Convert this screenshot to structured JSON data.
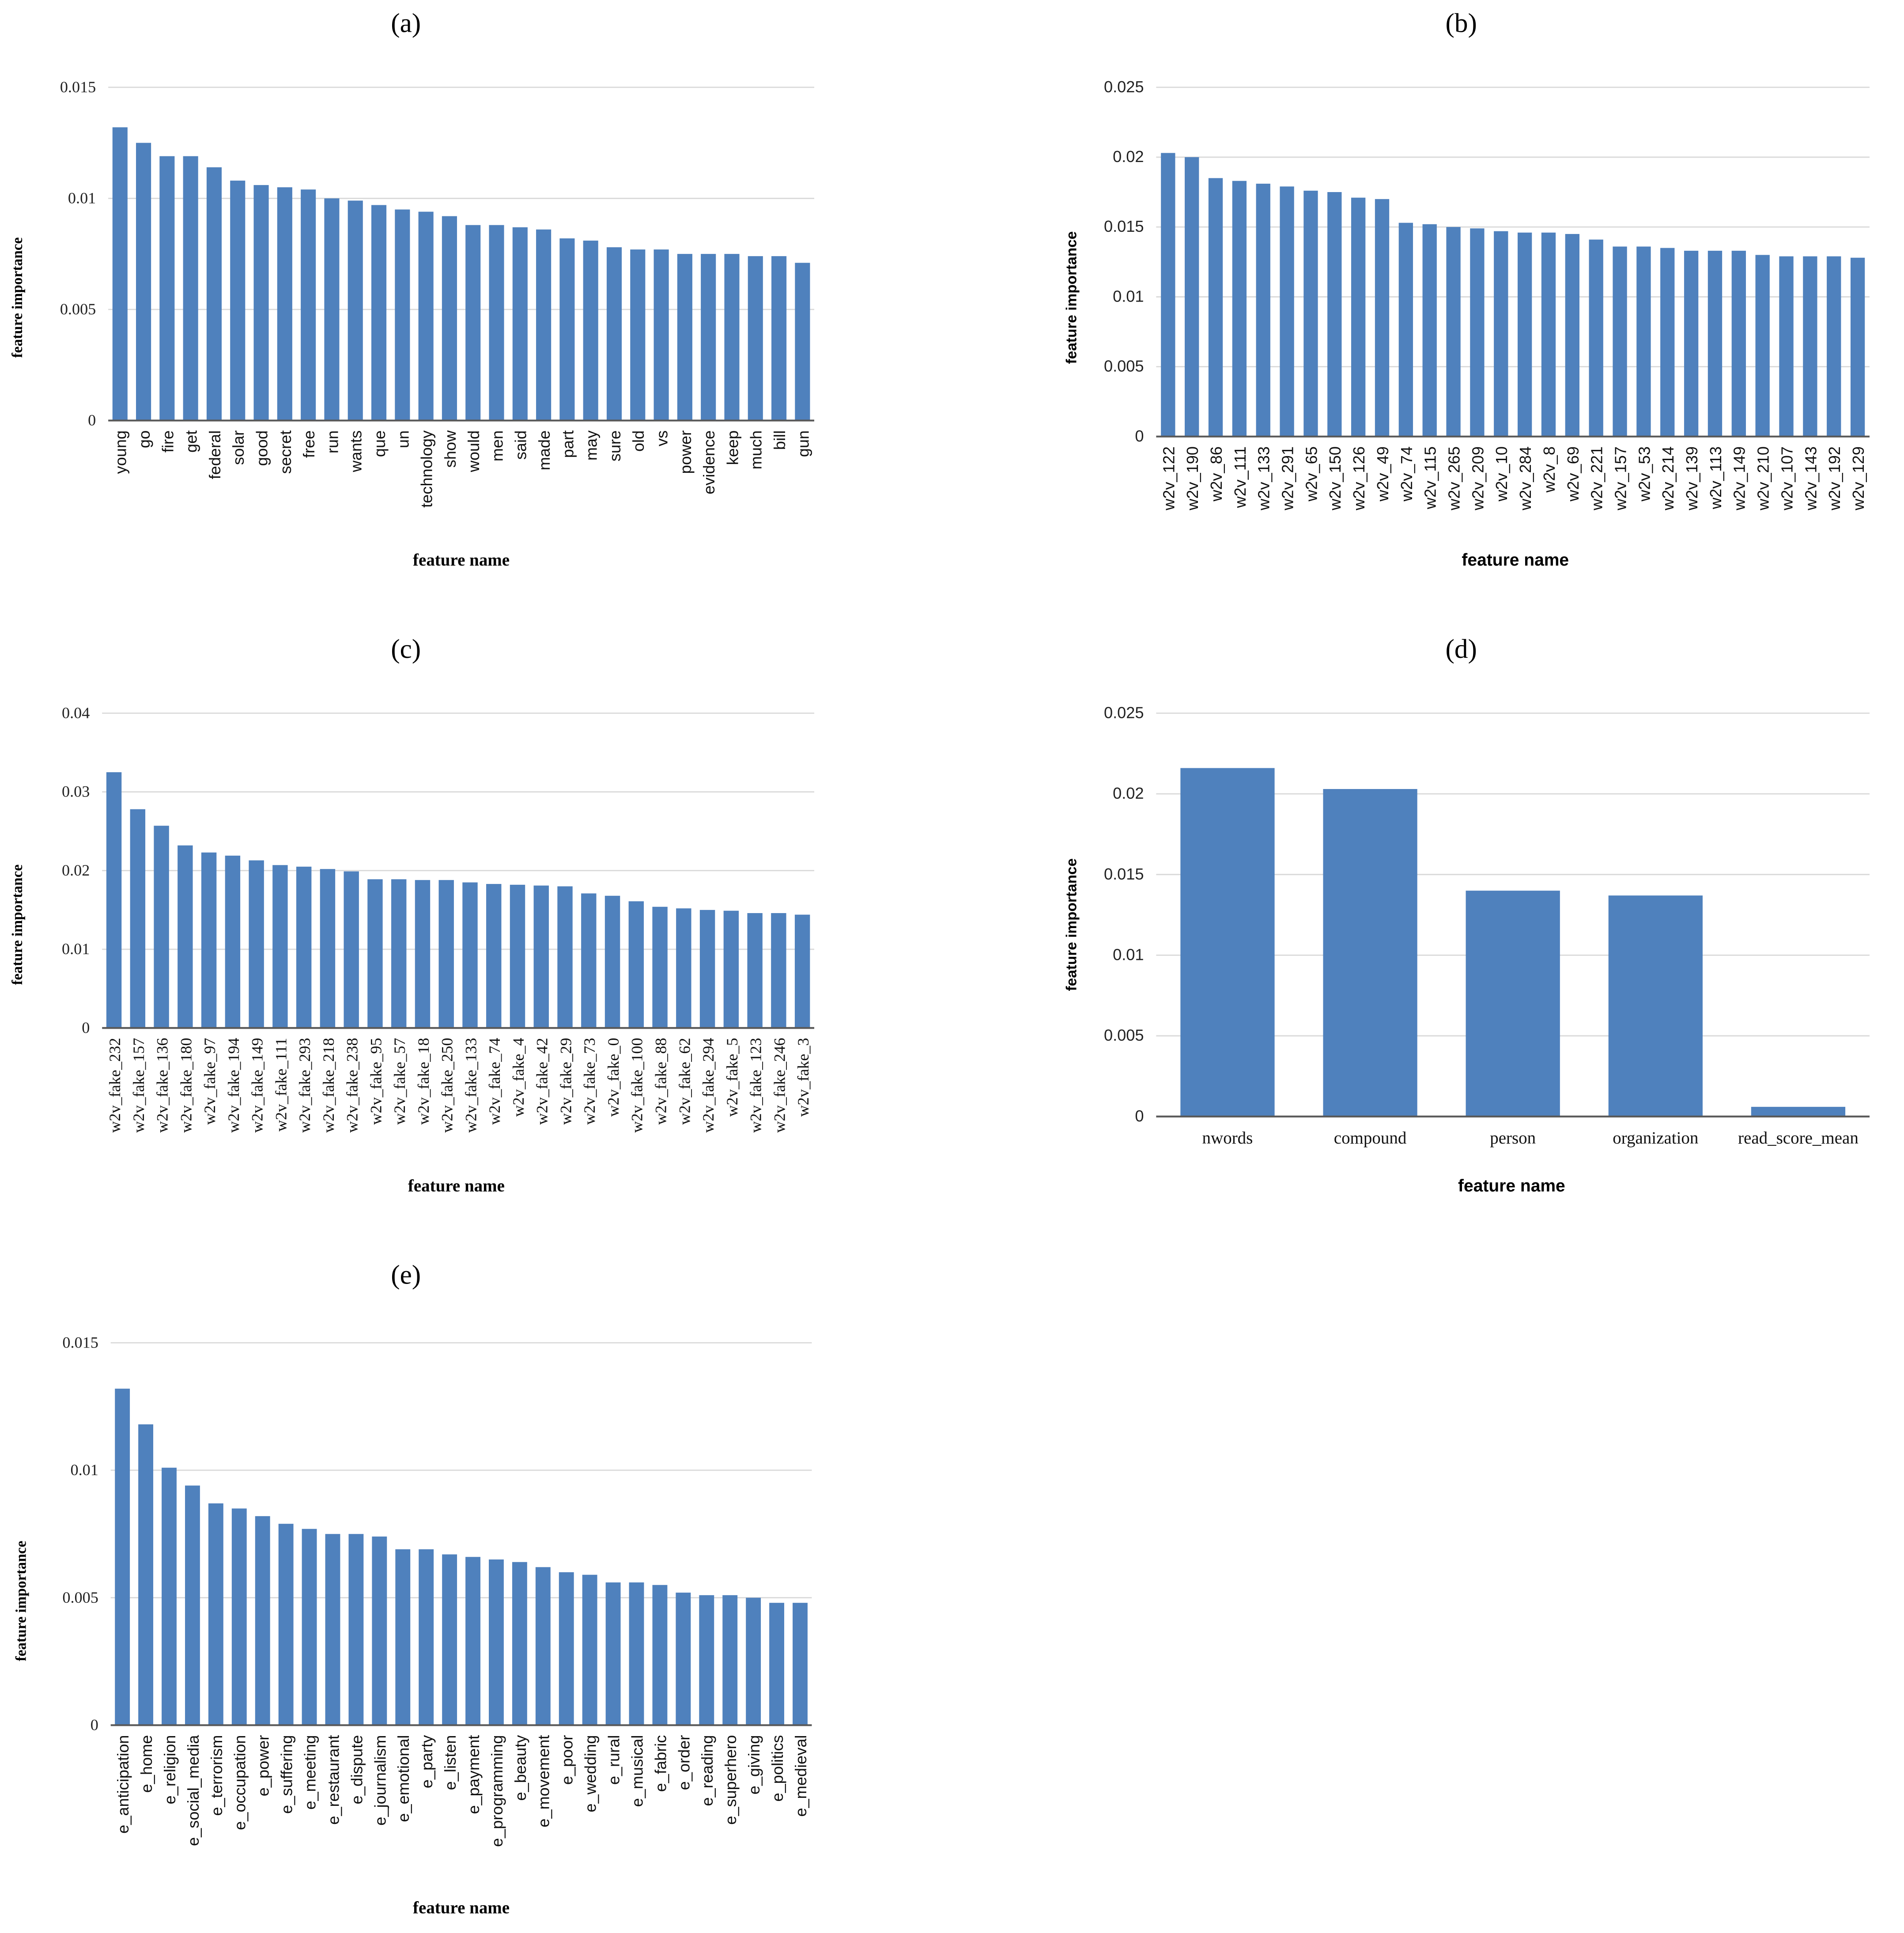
{
  "chart_data": [
    {
      "panel": "(a)",
      "type": "bar",
      "xlabel": "feature name",
      "ylabel": "feature importance",
      "ylim": [
        0,
        0.015
      ],
      "yticks": [
        "0",
        "0.005",
        "0.01",
        "0.015"
      ],
      "grid": true,
      "categories": [
        "young",
        "go",
        "fire",
        "get",
        "federal",
        "solar",
        "good",
        "secret",
        "free",
        "run",
        "wants",
        "que",
        "un",
        "technology",
        "show",
        "would",
        "men",
        "said",
        "made",
        "part",
        "may",
        "sure",
        "old",
        "vs",
        "power",
        "evidence",
        "keep",
        "much",
        "bill",
        "gun"
      ],
      "values": [
        0.0132,
        0.0125,
        0.0119,
        0.0119,
        0.0114,
        0.0108,
        0.0106,
        0.0105,
        0.0104,
        0.01,
        0.0099,
        0.0097,
        0.0095,
        0.0094,
        0.0092,
        0.0088,
        0.0088,
        0.0087,
        0.0086,
        0.0082,
        0.0081,
        0.0078,
        0.0077,
        0.0077,
        0.0075,
        0.0075,
        0.0075,
        0.0074,
        0.0074,
        0.0071
      ]
    },
    {
      "panel": "(b)",
      "type": "bar",
      "xlabel": "feature name",
      "ylabel": "feature importance",
      "ylim": [
        0,
        0.025
      ],
      "yticks": [
        "0",
        "0.005",
        "0.01",
        "0.015",
        "0.02",
        "0.025"
      ],
      "grid": true,
      "categories": [
        "w2v_122",
        "w2v_190",
        "w2v_86",
        "w2v_111",
        "w2v_133",
        "w2v_291",
        "w2v_65",
        "w2v_150",
        "w2v_126",
        "w2v_49",
        "w2v_74",
        "w2v_115",
        "w2v_265",
        "w2v_209",
        "w2v_10",
        "w2v_284",
        "w2v_8",
        "w2v_69",
        "w2v_221",
        "w2v_157",
        "w2v_53",
        "w2v_214",
        "w2v_139",
        "w2v_113",
        "w2v_149",
        "w2v_210",
        "w2v_107",
        "w2v_143",
        "w2v_192",
        "w2v_129"
      ],
      "values": [
        0.0203,
        0.02,
        0.0185,
        0.0183,
        0.0181,
        0.0179,
        0.0176,
        0.0175,
        0.0171,
        0.017,
        0.0153,
        0.0152,
        0.015,
        0.0149,
        0.0147,
        0.0146,
        0.0146,
        0.0145,
        0.0141,
        0.0136,
        0.0136,
        0.0135,
        0.0133,
        0.0133,
        0.0133,
        0.013,
        0.0129,
        0.0129,
        0.0129,
        0.0128
      ]
    },
    {
      "panel": "(c)",
      "type": "bar",
      "xlabel": "feature name",
      "ylabel": "feature importance",
      "ylim": [
        0,
        0.04
      ],
      "yticks": [
        "0",
        "0.01",
        "0.02",
        "0.03",
        "0.04"
      ],
      "grid": true,
      "categories": [
        "w2v_fake_232",
        "w2v_fake_157",
        "w2v_fake_136",
        "w2v_fake_180",
        "w2v_fake_97",
        "w2v_fake_194",
        "w2v_fake_149",
        "w2v_fake_111",
        "w2v_fake_293",
        "w2v_fake_218",
        "w2v_fake_238",
        "w2v_fake_95",
        "w2v_fake_57",
        "w2v_fake_18",
        "w2v_fake_250",
        "w2v_fake_133",
        "w2v_fake_74",
        "w2v_fake_4",
        "w2v_fake_42",
        "w2v_fake_29",
        "w2v_fake_73",
        "w2v_fake_0",
        "w2v_fake_100",
        "w2v_fake_88",
        "w2v_fake_62",
        "w2v_fake_294",
        "w2v_fake_5",
        "w2v_fake_123",
        "w2v_fake_246",
        "w2v_fake_3"
      ],
      "values": [
        0.0325,
        0.0278,
        0.0257,
        0.0232,
        0.0223,
        0.0219,
        0.0213,
        0.0207,
        0.0205,
        0.0202,
        0.0199,
        0.0189,
        0.0189,
        0.0188,
        0.0188,
        0.0185,
        0.0183,
        0.0182,
        0.0181,
        0.018,
        0.0171,
        0.0168,
        0.0161,
        0.0154,
        0.0152,
        0.015,
        0.0149,
        0.0146,
        0.0146,
        0.0144
      ]
    },
    {
      "panel": "(d)",
      "type": "bar",
      "xlabel": "feature name",
      "ylabel": "feature importance",
      "ylim": [
        0,
        0.025
      ],
      "yticks": [
        "0",
        "0.005",
        "0.01",
        "0.015",
        "0.02",
        "0.025"
      ],
      "grid": true,
      "categories": [
        "nwords",
        "compound",
        "person",
        "organization",
        "read_score_mean"
      ],
      "values": [
        0.0216,
        0.0203,
        0.014,
        0.0137,
        0.0006
      ]
    },
    {
      "panel": "(e)",
      "type": "bar",
      "xlabel": "feature name",
      "ylabel": "feature importance",
      "ylim": [
        0,
        0.015
      ],
      "yticks": [
        "0",
        "0.005",
        "0.01",
        "0.015"
      ],
      "grid": true,
      "categories": [
        "e_anticipation",
        "e_home",
        "e_religion",
        "e_social_media",
        "e_terrorism",
        "e_occupation",
        "e_power",
        "e_suffering",
        "e_meeting",
        "e_restaurant",
        "e_dispute",
        "e_journalism",
        "e_emotional",
        "e_party",
        "e_listen",
        "e_payment",
        "e_programming",
        "e_beauty",
        "e_movement",
        "e_poor",
        "e_wedding",
        "e_rural",
        "e_musical",
        "e_fabric",
        "e_order",
        "e_reading",
        "e_superhero",
        "e_giving",
        "e_politics",
        "e_medieval"
      ],
      "values": [
        0.0132,
        0.0118,
        0.0101,
        0.0094,
        0.0087,
        0.0085,
        0.0082,
        0.0079,
        0.0077,
        0.0075,
        0.0075,
        0.0074,
        0.0069,
        0.0069,
        0.0067,
        0.0066,
        0.0065,
        0.0064,
        0.0062,
        0.006,
        0.0059,
        0.0056,
        0.0056,
        0.0055,
        0.0052,
        0.0051,
        0.0051,
        0.005,
        0.0048,
        0.0048
      ]
    }
  ],
  "colors": {
    "bar": "#4f81bd",
    "grid": "#d9d9d9",
    "axis": "#595959"
  }
}
